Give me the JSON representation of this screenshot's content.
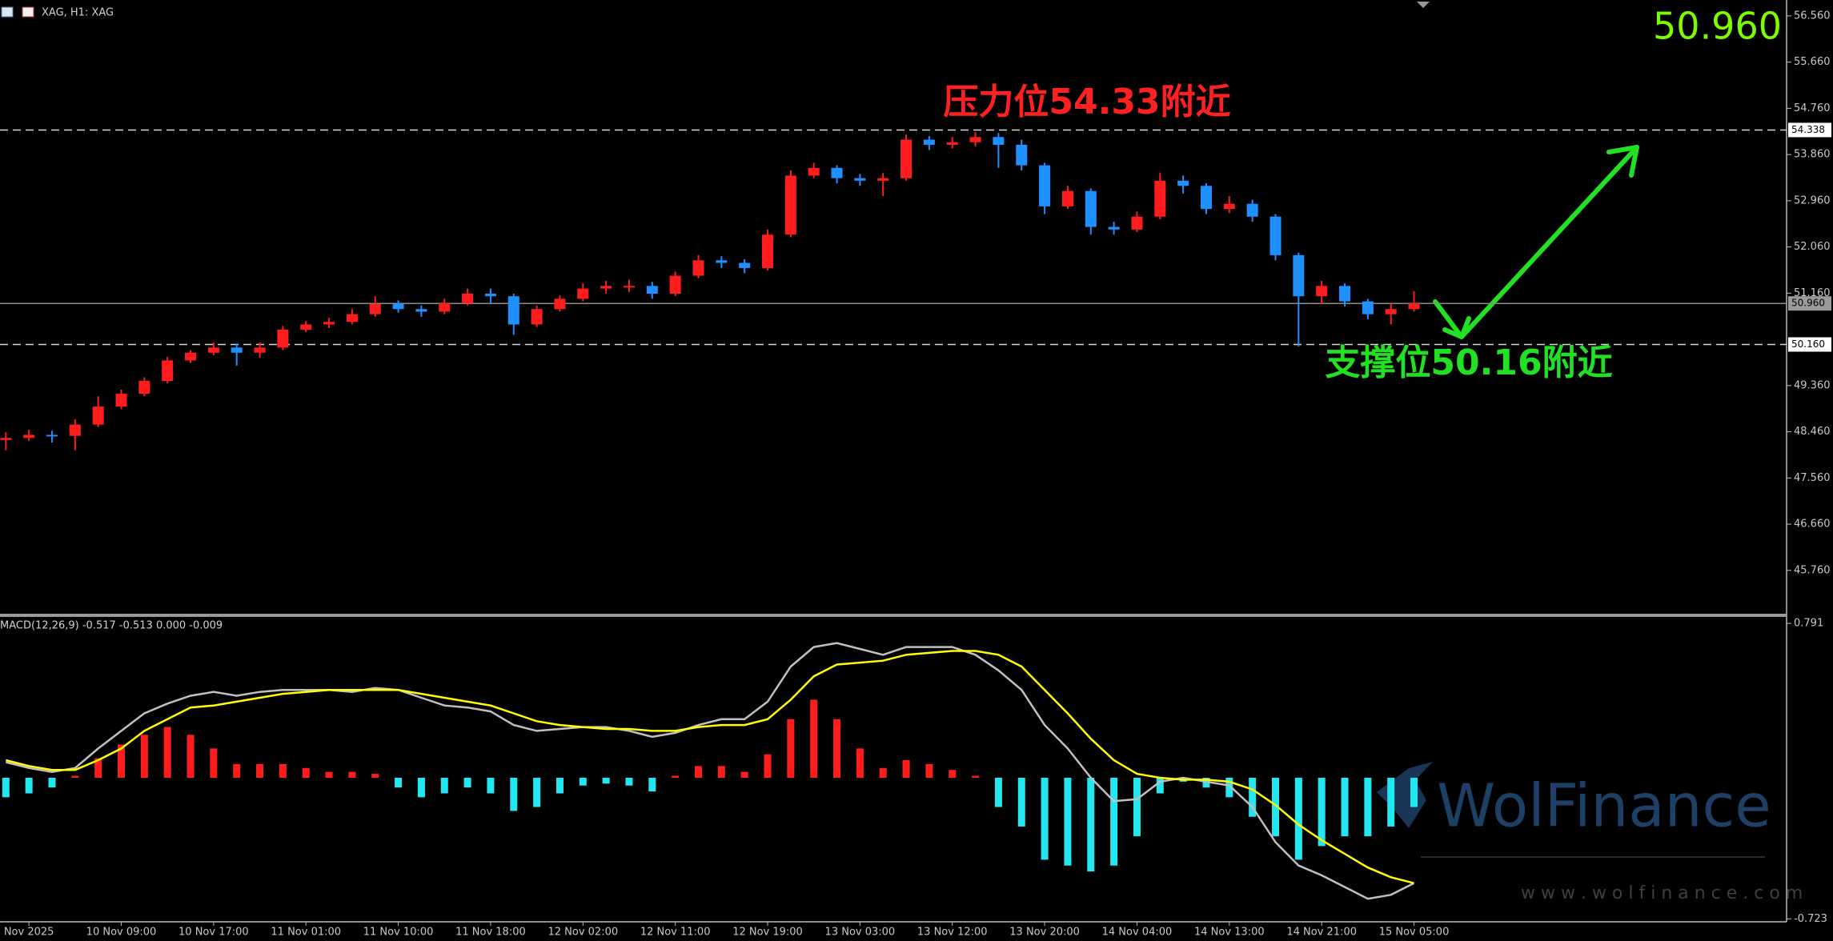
{
  "header": {
    "symbol": "XAG, H1: XAG",
    "price": "50.960"
  },
  "watermark": {
    "brand": "WolFinance",
    "url": "w w w . w o l f i n a n c e . c o m"
  },
  "chart_data": [
    {
      "type": "candlestick",
      "categories": [
        null,
        "Nov 2025",
        null,
        null,
        null,
        "10 Nov 09:00",
        null,
        null,
        null,
        "10 Nov 17:00",
        null,
        null,
        null,
        "11 Nov 01:00",
        null,
        null,
        null,
        "11 Nov 10:00",
        null,
        null,
        null,
        "11 Nov 18:00",
        null,
        null,
        null,
        "12 Nov 02:00",
        null,
        null,
        null,
        "12 Nov 11:00",
        null,
        null,
        null,
        "12 Nov 19:00",
        null,
        null,
        null,
        "13 Nov 03:00",
        null,
        null,
        null,
        "13 Nov 12:00",
        null,
        null,
        null,
        "13 Nov 20:00",
        null,
        null,
        null,
        "14 Nov 04:00",
        null,
        null,
        null,
        "14 Nov 13:00",
        null,
        null,
        null,
        "14 Nov 21:00",
        null,
        null,
        null,
        "15 Nov 05:00"
      ],
      "open": [
        48.3,
        48.34,
        48.4,
        48.38,
        48.6,
        48.95,
        49.2,
        49.45,
        49.85,
        50.0,
        50.1,
        50.0,
        50.1,
        50.45,
        50.55,
        50.6,
        50.75,
        50.95,
        50.85,
        50.8,
        50.96,
        51.15,
        51.1,
        50.55,
        50.85,
        51.05,
        51.25,
        51.3,
        51.3,
        51.15,
        51.5,
        51.8,
        51.75,
        51.65,
        52.3,
        53.45,
        53.6,
        53.4,
        53.35,
        53.4,
        54.15,
        54.05,
        54.1,
        54.2,
        54.05,
        53.65,
        52.85,
        53.15,
        52.45,
        52.4,
        52.65,
        53.35,
        53.25,
        52.8,
        52.9,
        52.65,
        51.9,
        51.1,
        51.3,
        51.0,
        50.75,
        50.85
      ],
      "high": [
        48.45,
        48.5,
        48.48,
        48.7,
        49.15,
        49.28,
        49.52,
        49.92,
        50.05,
        50.2,
        50.18,
        50.2,
        50.52,
        50.62,
        50.68,
        50.85,
        51.1,
        51.02,
        50.92,
        51.05,
        51.25,
        51.25,
        51.15,
        50.92,
        51.12,
        51.35,
        51.4,
        51.42,
        51.38,
        51.58,
        51.9,
        51.88,
        51.82,
        52.4,
        53.55,
        53.7,
        53.65,
        53.48,
        53.5,
        54.25,
        54.22,
        54.2,
        54.3,
        54.28,
        54.15,
        53.7,
        53.25,
        53.2,
        52.55,
        52.75,
        53.5,
        53.45,
        53.3,
        53.05,
        52.98,
        52.7,
        51.95,
        51.4,
        51.35,
        51.05,
        50.95,
        51.2
      ],
      "low": [
        48.1,
        48.28,
        48.25,
        48.1,
        48.55,
        48.9,
        49.15,
        49.4,
        49.8,
        49.95,
        49.75,
        49.9,
        50.05,
        50.4,
        50.48,
        50.55,
        50.7,
        50.78,
        50.7,
        50.75,
        50.92,
        50.95,
        50.35,
        50.5,
        50.8,
        51.0,
        51.15,
        51.18,
        51.05,
        51.1,
        51.45,
        51.65,
        51.55,
        51.6,
        52.25,
        53.4,
        53.3,
        53.25,
        53.05,
        53.35,
        53.95,
        53.98,
        54.02,
        53.6,
        53.55,
        52.7,
        52.8,
        52.3,
        52.3,
        52.35,
        52.6,
        53.1,
        52.7,
        52.72,
        52.55,
        51.8,
        50.12,
        50.95,
        50.9,
        50.65,
        50.55,
        50.8
      ],
      "close": [
        48.34,
        48.4,
        48.38,
        48.6,
        48.95,
        49.2,
        49.45,
        49.85,
        50.0,
        50.1,
        50.0,
        50.1,
        50.45,
        50.55,
        50.6,
        50.75,
        50.95,
        50.85,
        50.8,
        50.96,
        51.15,
        51.1,
        50.55,
        50.85,
        51.05,
        51.25,
        51.3,
        51.3,
        51.15,
        51.5,
        51.8,
        51.75,
        51.65,
        52.3,
        53.45,
        53.6,
        53.4,
        53.35,
        53.4,
        54.15,
        54.05,
        54.1,
        54.2,
        54.05,
        53.65,
        52.85,
        53.15,
        52.45,
        52.4,
        52.65,
        53.35,
        53.25,
        52.8,
        52.9,
        52.65,
        51.9,
        51.1,
        51.3,
        51.0,
        50.75,
        50.85,
        50.96
      ],
      "up_color": "#ff1c1c",
      "down_color": "#1e90ff",
      "ylim": [
        44.9,
        56.87
      ],
      "yticks": [
        {
          "value": 56.56,
          "label": "56.560"
        },
        {
          "value": 55.66,
          "label": "55.660"
        },
        {
          "value": 54.76,
          "label": "54.760"
        },
        {
          "value": 53.86,
          "label": "53.860"
        },
        {
          "value": 52.96,
          "label": "52.960"
        },
        {
          "value": 52.06,
          "label": "52.060"
        },
        {
          "value": 51.16,
          "label": "51.160"
        },
        {
          "value": 49.36,
          "label": "49.360"
        },
        {
          "value": 48.46,
          "label": "48.460"
        },
        {
          "value": 47.56,
          "label": "47.560"
        },
        {
          "value": 46.66,
          "label": "46.660"
        },
        {
          "value": 45.76,
          "label": "45.760"
        }
      ],
      "levels": [
        {
          "value": 54.338,
          "label": "54.338",
          "dashed": true
        },
        {
          "value": 50.96,
          "label": "50.960",
          "dashed": false
        },
        {
          "value": 50.16,
          "label": "50.160",
          "dashed": true
        }
      ],
      "annotations": [
        {
          "text": "压力位54.33附近",
          "color": "#ff2020"
        },
        {
          "text": "支撑位50.16附近",
          "color": "#22e022"
        }
      ]
    },
    {
      "type": "macd",
      "title": "MACD(12,26,9) -0.517 -0.513 0.000 -0.009",
      "ylim": [
        -0.73,
        0.82
      ],
      "yticks": [
        0.791,
        -0.723
      ],
      "positive_color": "#ff1c1c",
      "negative_color": "#22e6f0",
      "histogram": [
        -0.1,
        -0.08,
        -0.05,
        0.01,
        0.1,
        0.17,
        0.22,
        0.26,
        0.22,
        0.15,
        0.07,
        0.07,
        0.07,
        0.05,
        0.03,
        0.03,
        0.02,
        -0.05,
        -0.1,
        -0.08,
        -0.05,
        -0.08,
        -0.17,
        -0.15,
        -0.08,
        -0.04,
        -0.03,
        -0.04,
        -0.07,
        0.01,
        0.06,
        0.06,
        0.03,
        0.12,
        0.3,
        0.4,
        0.3,
        0.15,
        0.05,
        0.09,
        0.07,
        0.04,
        0.01,
        -0.15,
        -0.25,
        -0.42,
        -0.45,
        -0.48,
        -0.45,
        -0.3,
        -0.08,
        -0.02,
        -0.05,
        -0.1,
        -0.2,
        -0.3,
        -0.42,
        -0.35,
        -0.3,
        -0.3,
        -0.25,
        -0.15
      ],
      "series": [
        {
          "color": "#c0c0c0",
          "values": [
            0.08,
            0.05,
            0.03,
            0.05,
            0.15,
            0.24,
            0.33,
            0.38,
            0.42,
            0.44,
            0.42,
            0.44,
            0.45,
            0.45,
            0.45,
            0.44,
            0.46,
            0.45,
            0.41,
            0.37,
            0.36,
            0.34,
            0.27,
            0.24,
            0.25,
            0.26,
            0.26,
            0.24,
            0.21,
            0.23,
            0.27,
            0.3,
            0.3,
            0.39,
            0.57,
            0.67,
            0.69,
            0.66,
            0.63,
            0.67,
            0.67,
            0.67,
            0.63,
            0.55,
            0.45,
            0.27,
            0.15,
            0.0,
            -0.12,
            -0.11,
            -0.02,
            0.0,
            -0.02,
            -0.04,
            -0.15,
            -0.33,
            -0.45,
            -0.5,
            -0.56,
            -0.62,
            -0.6,
            -0.54
          ]
        },
        {
          "color": "#ffff00",
          "values": [
            0.09,
            0.06,
            0.04,
            0.04,
            0.09,
            0.15,
            0.24,
            0.3,
            0.36,
            0.37,
            0.39,
            0.41,
            0.43,
            0.44,
            0.45,
            0.45,
            0.45,
            0.45,
            0.43,
            0.41,
            0.39,
            0.37,
            0.33,
            0.29,
            0.27,
            0.26,
            0.25,
            0.25,
            0.24,
            0.24,
            0.26,
            0.27,
            0.27,
            0.3,
            0.4,
            0.52,
            0.58,
            0.59,
            0.6,
            0.63,
            0.64,
            0.65,
            0.65,
            0.63,
            0.57,
            0.45,
            0.33,
            0.2,
            0.09,
            0.02,
            0.0,
            -0.01,
            -0.01,
            -0.02,
            -0.06,
            -0.14,
            -0.24,
            -0.32,
            -0.39,
            -0.46,
            -0.51,
            -0.54
          ]
        }
      ]
    }
  ]
}
